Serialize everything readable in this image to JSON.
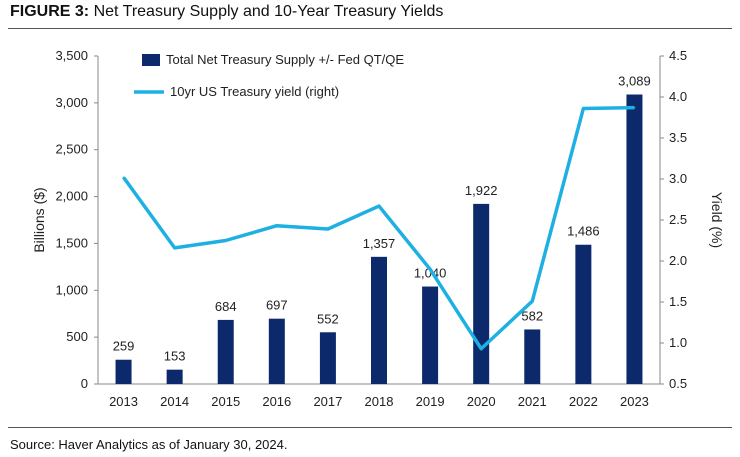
{
  "figure": {
    "label": "FIGURE 3:",
    "title": "Net Treasury Supply and 10-Year Treasury Yields",
    "source": "Source: Haver Analytics as of January 30, 2024."
  },
  "chart_data": {
    "type": "bar",
    "categories": [
      "2013",
      "2014",
      "2015",
      "2016",
      "2017",
      "2018",
      "2019",
      "2020",
      "2021",
      "2022",
      "2023"
    ],
    "series": [
      {
        "name": "Total Net Treasury Supply +/- Fed QT/QE",
        "type": "bar",
        "axis": "left",
        "color": "#0c2a6b",
        "values": [
          259,
          153,
          684,
          697,
          552,
          1357,
          1040,
          1922,
          582,
          1486,
          3089
        ],
        "labels": [
          "259",
          "153",
          "684",
          "697",
          "552",
          "1,357",
          "1,040",
          "1,922",
          "582",
          "1,486",
          "3,089"
        ]
      },
      {
        "name": "10yr US Treasury yield (right)",
        "type": "line",
        "axis": "right",
        "color": "#1fb0e3",
        "values": [
          3.02,
          2.16,
          2.25,
          2.43,
          2.39,
          2.67,
          1.9,
          0.93,
          1.51,
          3.86,
          3.87
        ]
      }
    ],
    "ylabel": "Billions ($)",
    "y2label": "Yield (%)",
    "ylim": [
      0,
      3500
    ],
    "y2lim": [
      0.5,
      4.5
    ],
    "yticks": [
      "0",
      "500",
      "1,000",
      "1,500",
      "2,000",
      "2,500",
      "3,000",
      "3,500"
    ],
    "y2ticks": [
      "0.5",
      "1.0",
      "1.5",
      "2.0",
      "2.5",
      "3.0",
      "3.5",
      "4.0",
      "4.5"
    ],
    "legend": "top-left"
  }
}
